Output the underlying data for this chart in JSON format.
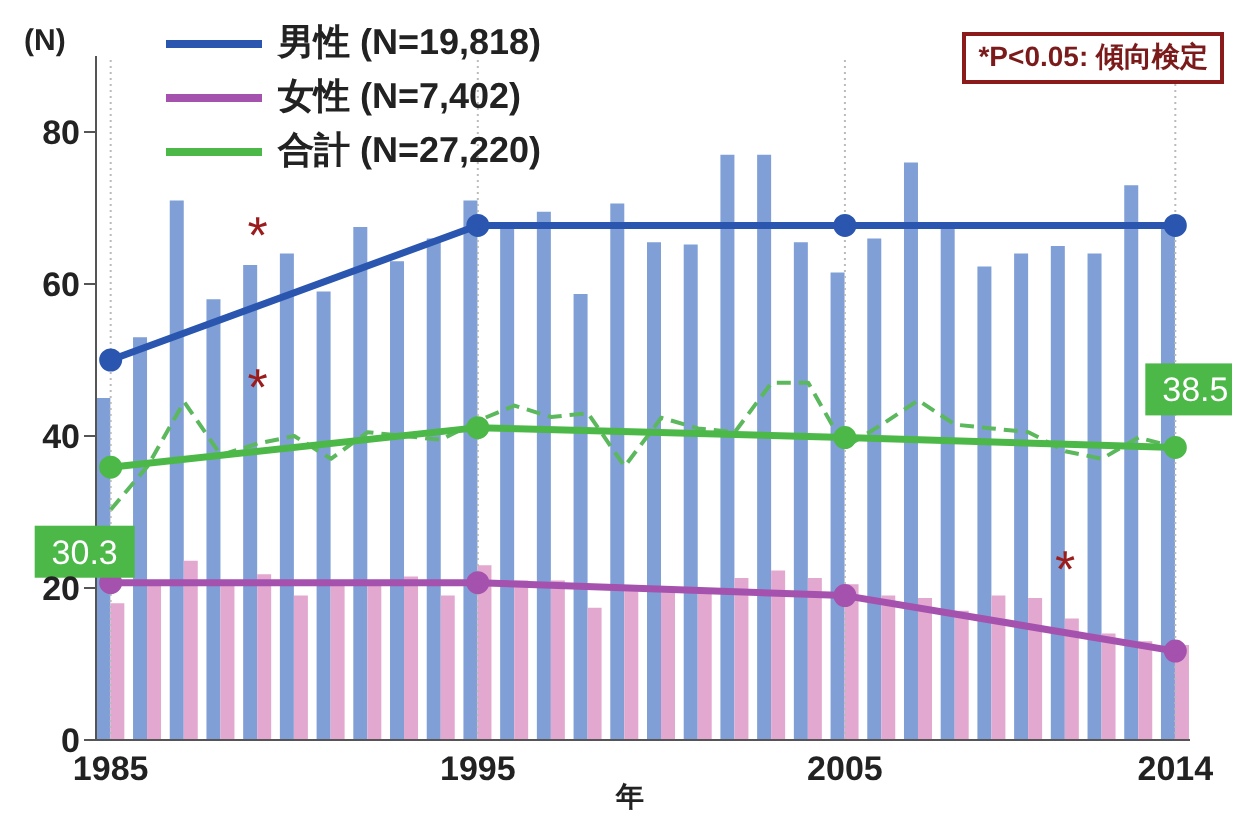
{
  "chart_data": {
    "type": "bar",
    "xlabel": "年",
    "ylabel": "(N)",
    "x": [
      1985,
      1986,
      1987,
      1988,
      1989,
      1990,
      1991,
      1992,
      1993,
      1994,
      1995,
      1996,
      1997,
      1998,
      1999,
      2000,
      2001,
      2002,
      2003,
      2004,
      2005,
      2006,
      2007,
      2008,
      2009,
      2010,
      2011,
      2012,
      2013,
      2014
    ],
    "series": [
      {
        "color": "#7f9fd6",
        "values": [
          45,
          53,
          71,
          58,
          62.5,
          64,
          59,
          67.5,
          63,
          66,
          71,
          68,
          69.5,
          58.7,
          70.6,
          65.5,
          65.2,
          77,
          77,
          65.5,
          61.5,
          66,
          76,
          67.5,
          62.3,
          64,
          65,
          64,
          73,
          67.5
        ]
      },
      {
        "color": "#e3a8cf",
        "values": [
          18,
          21,
          23.6,
          21,
          21.8,
          19,
          21,
          21,
          21.5,
          19,
          23,
          21,
          21,
          17.4,
          20,
          20,
          20,
          21.3,
          22.3,
          21.3,
          20.5,
          19,
          18.7,
          17,
          19,
          18.7,
          16,
          14,
          13,
          12.5
        ]
      },
      {
        "type": "line",
        "color": "#5cb85c",
        "line_style": "dashed",
        "marker": "none",
        "values": [
          30.3,
          36,
          44.5,
          37.5,
          39,
          40,
          37,
          40.5,
          40,
          39.5,
          42,
          44,
          42.5,
          43,
          36,
          42.4,
          41,
          40.5,
          47,
          47,
          38.5,
          41.5,
          44.7,
          41.5,
          41,
          40.5,
          38,
          37,
          39.8,
          38.5
        ]
      },
      {
        "type": "line",
        "name": "男性 (N=19,818)",
        "color": "#2a56b0",
        "marker": "circle",
        "x": [
          1985,
          1995,
          2005,
          2014
        ],
        "values": [
          50,
          67.7,
          67.7,
          67.7
        ]
      },
      {
        "type": "line",
        "name": "女性 (N=7,402)",
        "color": "#a452ad",
        "marker": "circle",
        "x": [
          1985,
          1995,
          2005,
          2014
        ],
        "values": [
          20.7,
          20.7,
          19,
          11.7
        ]
      },
      {
        "type": "line",
        "name": "合計 (N=27,220)",
        "color": "#4cb848",
        "marker": "circle",
        "x": [
          1985,
          1995,
          2005,
          2014
        ],
        "values": [
          35.9,
          41.1,
          39.8,
          38.5
        ]
      }
    ],
    "xlim": [
      1984.6,
      2014.4
    ],
    "xticks": [
      1985,
      1995,
      2005,
      2014
    ],
    "ylim": [
      0,
      90
    ],
    "yticks": [
      0,
      20,
      40,
      60,
      80
    ],
    "grid": "x",
    "legend": "top left",
    "annotations": [
      {
        "text": "30.3",
        "x": 1985,
        "y": 30.3
      },
      {
        "text": "38.5",
        "x": 2014,
        "y": 38.5
      },
      {
        "text": "*",
        "x": 1989,
        "y": 61.5
      },
      {
        "text": "*",
        "x": 1989,
        "y": 41.5
      },
      {
        "text": "*",
        "x": 2011,
        "y": 17.5
      },
      "*P<0.05:  傾向検定"
    ]
  }
}
